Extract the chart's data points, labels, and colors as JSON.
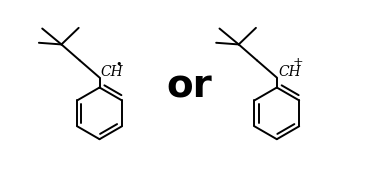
{
  "background_color": "#ffffff",
  "line_color": "#000000",
  "text_color": "#000000",
  "or_fontsize": 28,
  "or_fontweight": "bold",
  "or_text": "or",
  "label_left": "CH",
  "label_right": "CH",
  "superscript_left": "•",
  "superscript_right": "+",
  "figsize": [
    3.78,
    1.77
  ],
  "dpi": 100,
  "lw": 1.4
}
